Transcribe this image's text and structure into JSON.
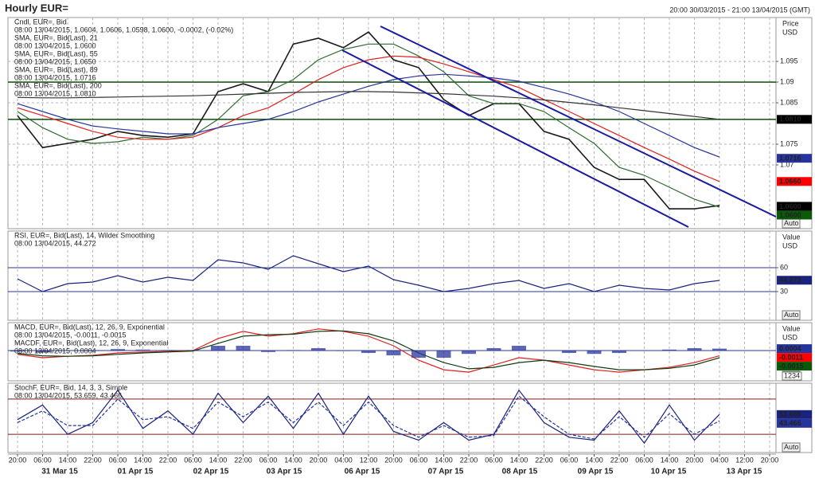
{
  "chart_data": [
    {
      "type": "line",
      "title": "Hourly EUR=",
      "subtitle": "20:00 30/03/2015 - 21:00 13/04/2015 (GMT)",
      "unit_labels": [
        "Price",
        "USD"
      ],
      "auto": "Auto",
      "ylim": [
        1.0546,
        1.1056
      ],
      "yticks": [
        1.07,
        1.075,
        1.085,
        1.09,
        1.095
      ],
      "grid": true,
      "hlines": [
        1.09,
        1.081
      ],
      "hline_color": "#1f5a1f",
      "series": [
        {
          "name": "Cndl, EUR=, Bid",
          "detail": "08:00 13/04/2015, 1.0604, 1.0606, 1.0598, 1.0600, -0.0002, (-0.02%)",
          "color": "#1a1a1a",
          "values": [
            1.0819,
            1.0742,
            1.0752,
            1.0762,
            1.0781,
            1.0771,
            1.0767,
            1.0775,
            1.0877,
            1.0896,
            1.0877,
            1.0992,
            1.1006,
            1.0983,
            1.1021,
            1.0954,
            1.0935,
            1.0858,
            1.0819,
            1.0848,
            1.0848,
            1.0781,
            1.0762,
            1.0694,
            1.0665,
            1.0665,
            1.0594,
            1.0594,
            1.0602,
            null,
            null
          ]
        },
        {
          "name": "SMA, EUR=, Bid(Last), 21",
          "detail": "08:00 13/04/2015, 1.0600",
          "color": "#2e6b2e",
          "values": [
            1.0829,
            1.079,
            1.0762,
            1.0752,
            1.0756,
            1.0767,
            1.0762,
            1.0771,
            1.081,
            1.0867,
            1.0877,
            1.0906,
            1.0954,
            1.0979,
            1.0992,
            1.0992,
            1.0963,
            1.0925,
            1.0867,
            1.0848,
            1.0848,
            1.0829,
            1.079,
            1.0752,
            1.0694,
            1.0675,
            1.0646,
            1.0617,
            1.0598,
            null,
            null
          ]
        },
        {
          "name": "SMA, EUR=, Bid(Last), 55",
          "detail": "08:00 13/04/2015, 1.0650",
          "color": "#e02020",
          "values": [
            1.0838,
            1.0819,
            1.08,
            1.0781,
            1.0767,
            1.0762,
            1.0762,
            1.0767,
            1.079,
            1.0819,
            1.0838,
            1.0871,
            1.0906,
            1.0935,
            1.0954,
            1.0963,
            1.096,
            1.0944,
            1.0925,
            1.0906,
            1.0887,
            1.0858,
            1.0829,
            1.08,
            1.0771,
            1.0742,
            1.0714,
            1.0685,
            1.066,
            null,
            null
          ]
        },
        {
          "name": "SMA, EUR=, Bid(Last), 89",
          "detail": "08:00 13/04/2015, 1.0716",
          "color": "#27349b",
          "values": [
            1.0848,
            1.0829,
            1.081,
            1.0794,
            1.0787,
            1.0781,
            1.0775,
            1.0775,
            1.079,
            1.08,
            1.081,
            1.0829,
            1.0852,
            1.0871,
            1.089,
            1.0906,
            1.0915,
            1.0919,
            1.0915,
            1.091,
            1.0902,
            1.0887,
            1.0871,
            1.0852,
            1.0829,
            1.08,
            1.0771,
            1.0742,
            1.0719,
            null,
            null
          ]
        },
        {
          "name": "SMA, EUR=, Bid(Last), 200",
          "detail": "08:00 13/04/2015, 1.0810",
          "color": "#333333",
          "values": [
            1.0863,
            1.0862,
            1.0862,
            1.0863,
            1.0864,
            1.0865,
            1.0866,
            1.0867,
            1.0869,
            1.0871,
            1.0873,
            1.0875,
            1.0876,
            1.0877,
            1.0877,
            1.0876,
            1.0874,
            1.0872,
            1.0869,
            1.0866,
            1.0862,
            1.0857,
            1.0851,
            1.0845,
            1.0838,
            1.0831,
            1.0824,
            1.0817,
            1.081,
            null,
            null
          ]
        }
      ],
      "markers": [
        {
          "value": 1.081,
          "label": "1.0810",
          "color": "#000000"
        },
        {
          "value": 1.0716,
          "color": "#27349b"
        },
        {
          "value": 1.066,
          "label": "1.0660",
          "color": "#ff0000"
        },
        {
          "value": 1.06,
          "label": "1.0600",
          "color": "#000000"
        },
        {
          "value": 1.06,
          "label": "1.0600",
          "color": "#0a5a0a"
        }
      ]
    },
    {
      "type": "line",
      "unit_labels": [
        "Value",
        "USD"
      ],
      "auto": "Auto",
      "ylim": [
        -6,
        106
      ],
      "yticks": [
        30,
        60
      ],
      "grid": true,
      "hlines": [
        30,
        60
      ],
      "hline_color": "#27349b",
      "series": [
        {
          "name": "RSI, EUR=, Bid(Last), 14, Wilder Smoothing",
          "detail": "08:00 13/04/2015, 44.272",
          "color": "#1a237e",
          "values": [
            46,
            30,
            40,
            42,
            50,
            42,
            48,
            44,
            70,
            66,
            58,
            75,
            65,
            55,
            62,
            45,
            38,
            30,
            34,
            40,
            44,
            34,
            40,
            30,
            38,
            34,
            32,
            40,
            44,
            null,
            null
          ]
        }
      ],
      "markers": [
        {
          "value": 44.272,
          "color": "#1a237e"
        }
      ]
    },
    {
      "type": "line",
      "unit_labels": [
        "Value",
        "USD"
      ],
      "auto": "Auto",
      "counter": "1234",
      "ylim": [
        -0.0063,
        0.0058
      ],
      "grid": true,
      "hlines": [
        0
      ],
      "hline_color": "#27349b",
      "series": [
        {
          "name": "MACD, EUR=, Bid(Last), 12, 26, 9, Exponential",
          "detail": "08:00 13/04/2015, -0.0011, -0.0015",
          "color": "#e02020",
          "values": [
            -0.0008,
            -0.0015,
            -0.0012,
            -0.001,
            -0.0005,
            -0.0003,
            -0.0002,
            0,
            0.0025,
            0.004,
            0.003,
            0.0035,
            0.0045,
            0.004,
            0.003,
            0.001,
            -0.002,
            -0.004,
            -0.0045,
            -0.003,
            -0.0015,
            -0.002,
            -0.003,
            -0.004,
            -0.0045,
            -0.004,
            -0.0035,
            -0.0025,
            -0.0011,
            null,
            null
          ]
        },
        {
          "color": "#0f3d0f",
          "values": [
            -0.0006,
            -0.0011,
            -0.0012,
            -0.0011,
            -0.0008,
            -0.0005,
            -0.0003,
            -0.0001,
            0.0015,
            0.003,
            0.0033,
            0.0034,
            0.004,
            0.0041,
            0.0035,
            0.002,
            -0.0005,
            -0.0025,
            -0.0038,
            -0.0035,
            -0.0025,
            -0.002,
            -0.0025,
            -0.0033,
            -0.004,
            -0.004,
            -0.0037,
            -0.003,
            -0.0015,
            null,
            null
          ]
        },
        {
          "name": "MACDF, EUR=, Bid(Last), 12, 26, 9, Exponential",
          "detail": "08:00 13/04/2015, 0.0004",
          "color": "#27349b",
          "style": "bars",
          "values": [
            -0.0002,
            -0.0004,
            0,
            0.0001,
            0.0003,
            0.0002,
            0.0001,
            0.0001,
            0.001,
            0.001,
            -0.0003,
            0.0001,
            0.0005,
            -0.0001,
            -0.0005,
            -0.001,
            -0.0015,
            -0.0015,
            -0.0007,
            0.0005,
            0.001,
            0,
            -0.0005,
            -0.0007,
            -0.0005,
            0,
            0.0002,
            0.0005,
            0.0004,
            null,
            null
          ]
        }
      ],
      "markers": [
        {
          "value": 0.0004,
          "color": "#27349b"
        },
        {
          "value": -0.0011,
          "color": "#ff0000"
        },
        {
          "value": -0.0015,
          "color": "#0a5a0a"
        }
      ]
    },
    {
      "type": "line",
      "auto": "Auto",
      "ylim": [
        -11,
        107
      ],
      "grid": true,
      "hlines": [
        20,
        80
      ],
      "hline_color": "#7a1f1f",
      "series": [
        {
          "name": "StochF, EUR=, Bid, 14, 3, 3, Simple",
          "detail": "08:00 13/04/2015, 53.659, 43.466",
          "color": "#1a237e",
          "values": [
            45,
            70,
            20,
            40,
            95,
            30,
            60,
            20,
            90,
            40,
            85,
            30,
            90,
            20,
            85,
            25,
            10,
            40,
            10,
            20,
            95,
            40,
            15,
            10,
            60,
            5,
            70,
            10,
            54,
            null,
            null
          ]
        },
        {
          "color": "#27349b",
          "dash": true,
          "values": [
            40,
            60,
            35,
            35,
            80,
            45,
            50,
            30,
            75,
            50,
            75,
            40,
            75,
            35,
            75,
            35,
            15,
            35,
            15,
            18,
            85,
            50,
            20,
            12,
            50,
            15,
            55,
            20,
            43,
            null,
            null
          ]
        }
      ],
      "markers": [
        {
          "value": 53.659,
          "color": "#1a237e"
        },
        {
          "value": 43.466,
          "color": "#27349b"
        }
      ],
      "categories": [
        "20:00",
        "06:00",
        "14:00",
        "22:00",
        "06:00",
        "14:00",
        "22:00",
        "06:00",
        "14:00",
        "22:00",
        "06:00",
        "14:00",
        "20:00",
        "04:00",
        "12:00",
        "20:00",
        "06:00",
        "14:00",
        "22:00",
        "06:00",
        "14:00",
        "22:00",
        "06:00",
        "14:00",
        "22:00",
        "06:00",
        "14:00",
        "20:00",
        "04:00",
        "12:00",
        "20:00"
      ],
      "date_labels": [
        "31 Mar 15",
        "01 Apr 15",
        "02 Apr 15",
        "03 Apr 15",
        "06 Apr 15",
        "07 Apr 15",
        "08 Apr 15",
        "09 Apr 15",
        "10 Apr 15",
        "13 Apr 15"
      ]
    }
  ]
}
